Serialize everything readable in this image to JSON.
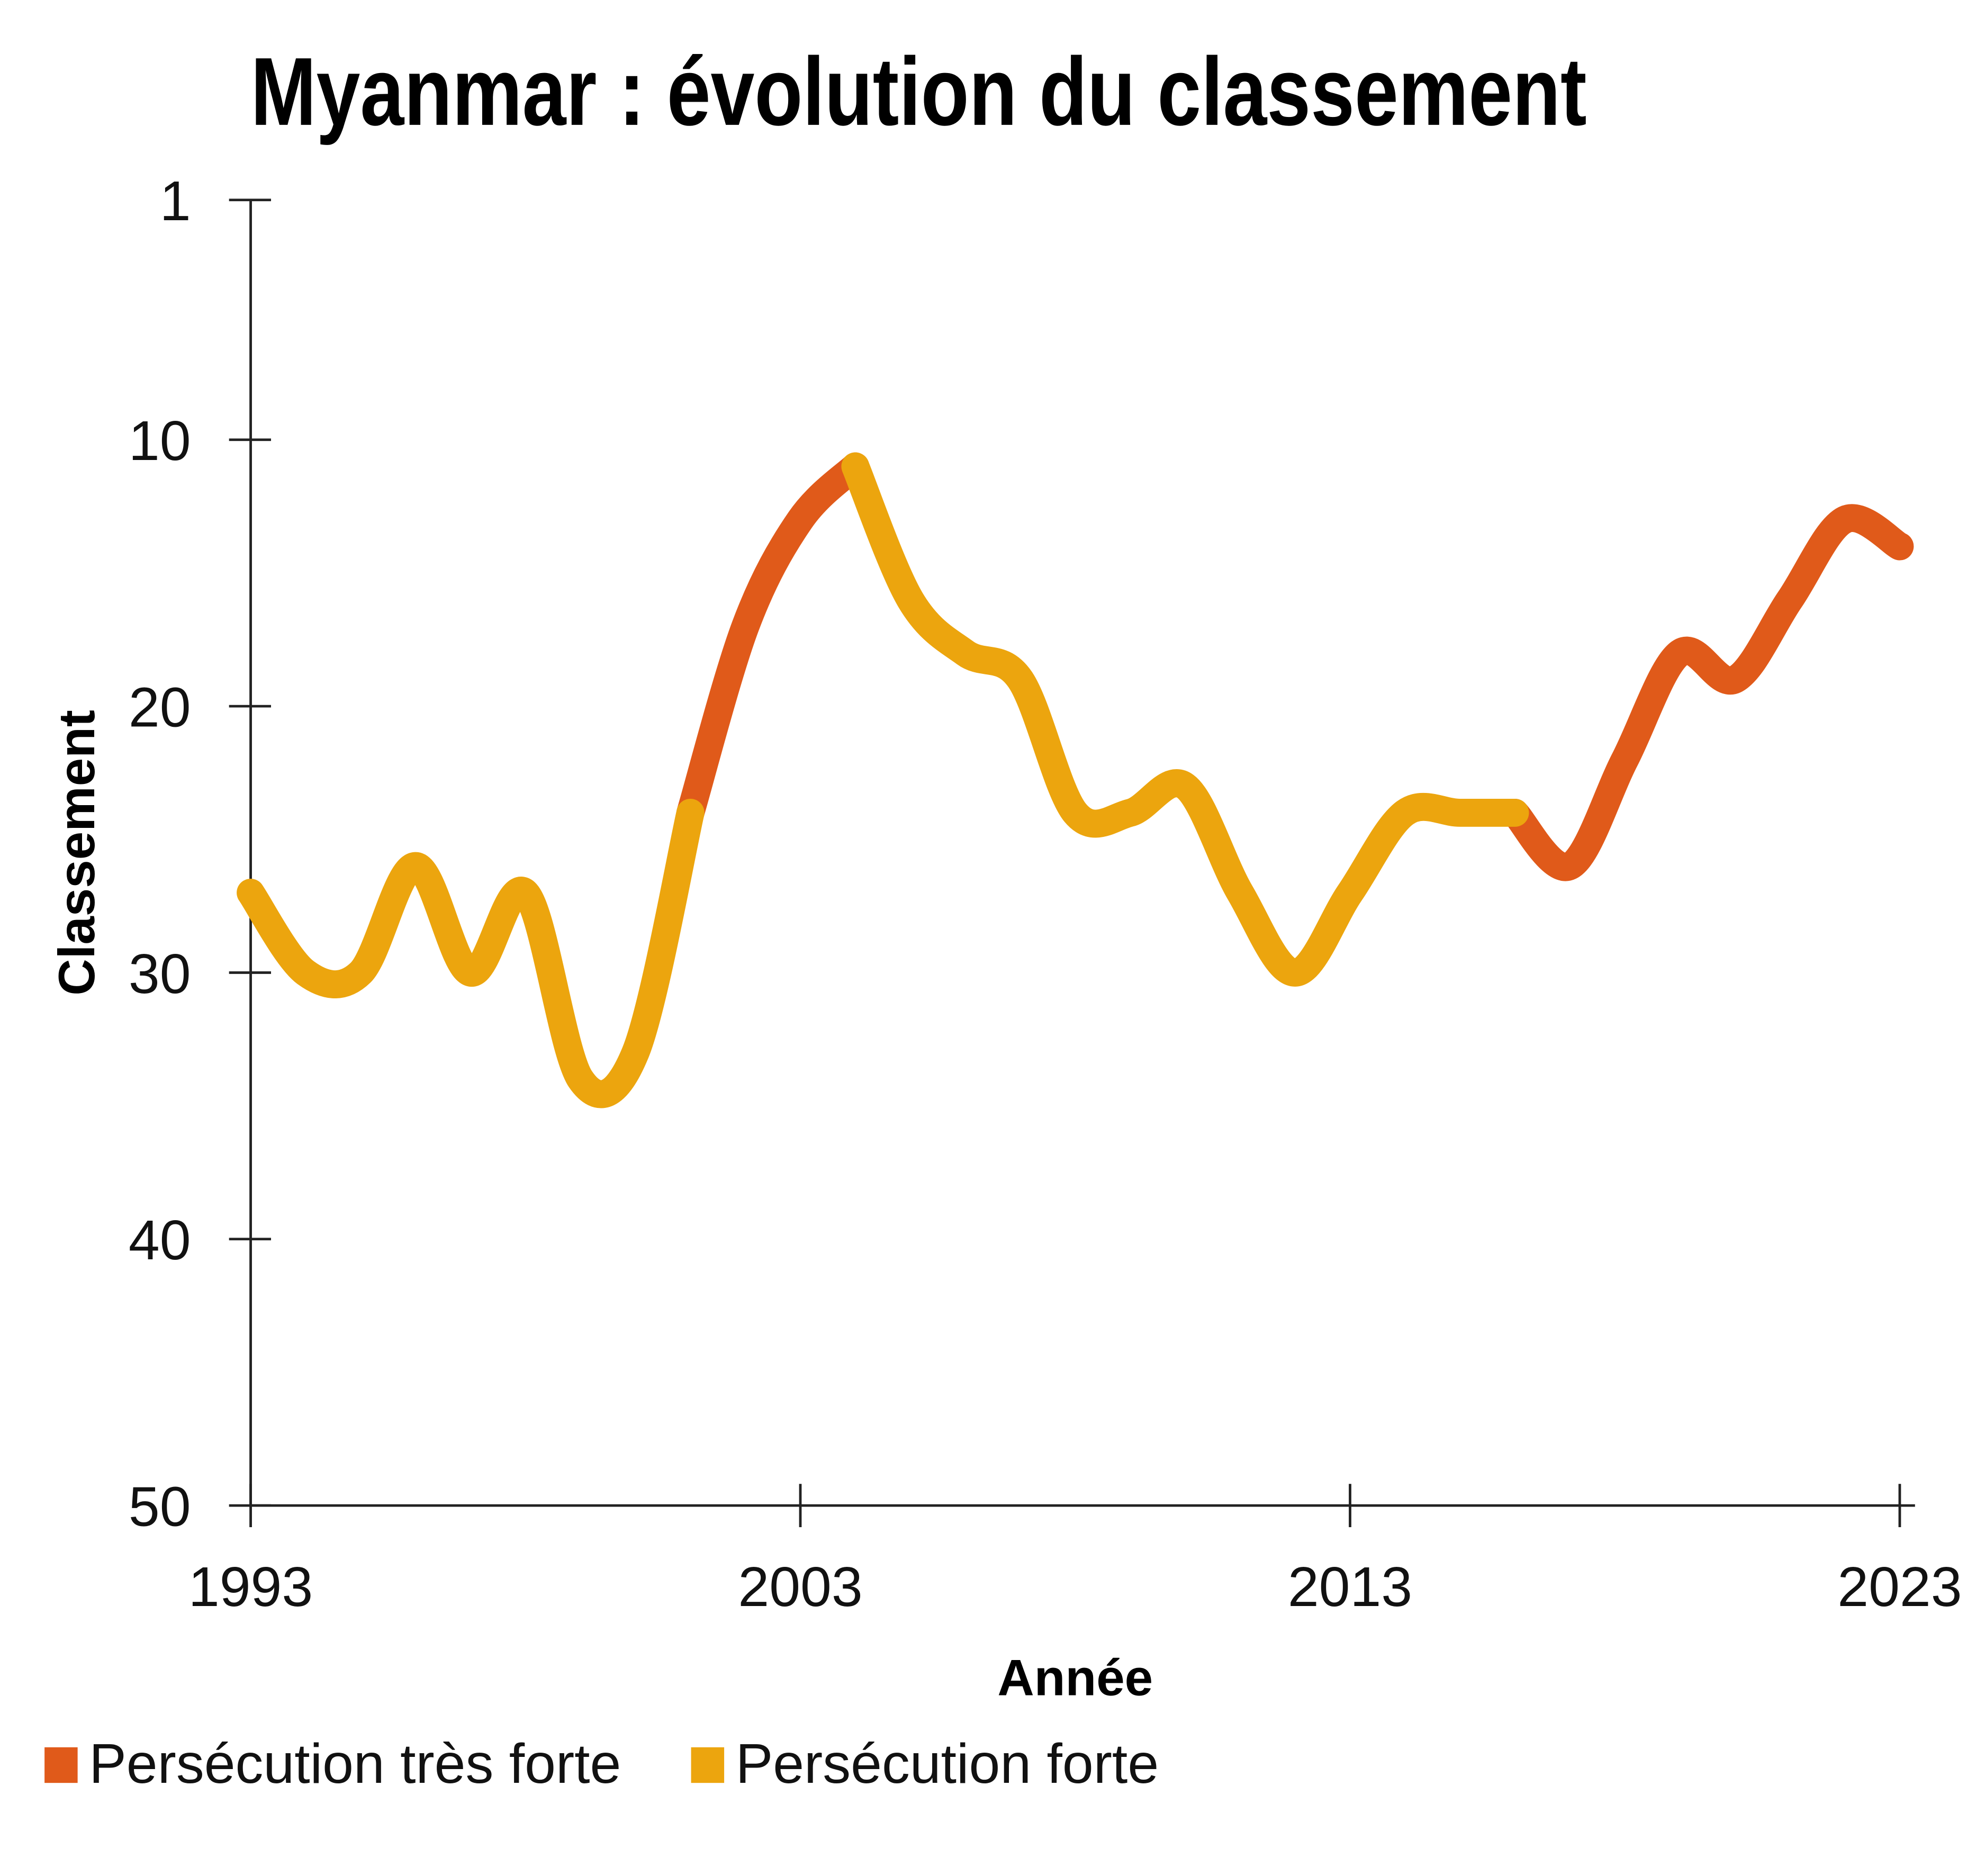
{
  "chart_data": {
    "type": "line",
    "title": "Myanmar : évolution du classement",
    "x_label": "Année",
    "y_label": "Classement",
    "x": [
      1993,
      1994,
      1995,
      1996,
      1997,
      1998,
      1999,
      2000,
      2001,
      2002,
      2003,
      2004,
      2005,
      2006,
      2007,
      2008,
      2009,
      2010,
      2011,
      2012,
      2013,
      2014,
      2015,
      2016,
      2017,
      2018,
      2019,
      2020,
      2021,
      2022,
      2023
    ],
    "series": [
      {
        "name": "Persécution très forte",
        "color": "#e05a1a",
        "values": [
          null,
          null,
          null,
          null,
          null,
          null,
          null,
          null,
          24,
          17,
          13,
          11,
          null,
          null,
          null,
          null,
          null,
          null,
          null,
          null,
          null,
          null,
          null,
          24,
          26,
          22,
          18,
          19,
          16,
          13,
          14
        ]
      },
      {
        "name": "Persécution forte",
        "color": "#eca50e",
        "values": [
          27,
          30,
          30,
          26,
          30,
          27,
          34,
          33,
          24,
          null,
          null,
          11,
          16,
          18,
          19,
          24,
          24,
          23,
          27,
          30,
          27,
          24,
          24,
          24,
          null,
          null,
          null,
          null,
          null,
          null,
          null
        ]
      }
    ],
    "xlim": [
      1993,
      2023
    ],
    "xticks": [
      1993,
      2003,
      2013,
      2023
    ],
    "ylim": [
      1,
      50
    ],
    "yticks": [
      1,
      10,
      20,
      30,
      40,
      50
    ],
    "y_inverted": true,
    "legend": "bottom-left"
  }
}
